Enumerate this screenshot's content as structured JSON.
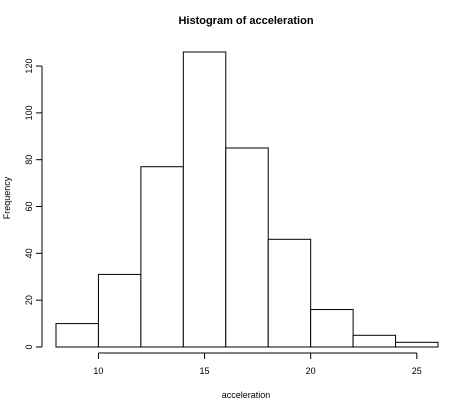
{
  "chart_data": {
    "type": "bar",
    "title": "Histogram of acceleration",
    "xlabel": "acceleration",
    "ylabel": "Frequency",
    "bins": [
      {
        "start": 8,
        "end": 10,
        "count": 10
      },
      {
        "start": 10,
        "end": 12,
        "count": 31
      },
      {
        "start": 12,
        "end": 14,
        "count": 77
      },
      {
        "start": 14,
        "end": 16,
        "count": 126
      },
      {
        "start": 16,
        "end": 18,
        "count": 85
      },
      {
        "start": 18,
        "end": 20,
        "count": 46
      },
      {
        "start": 20,
        "end": 22,
        "count": 16
      },
      {
        "start": 22,
        "end": 24,
        "count": 5
      },
      {
        "start": 24,
        "end": 26,
        "count": 2
      }
    ],
    "xlim": [
      8,
      26
    ],
    "ylim": [
      0,
      126
    ],
    "x_ticks": [
      10,
      15,
      20,
      25
    ],
    "y_ticks": [
      0,
      20,
      40,
      60,
      80,
      100,
      120
    ],
    "grid": false,
    "legend": "none",
    "bar_fill": "#ffffff",
    "bar_stroke": "#000000"
  }
}
